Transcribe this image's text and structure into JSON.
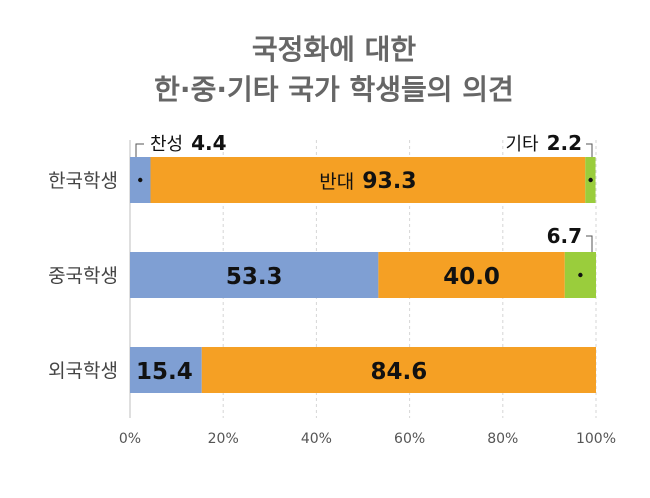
{
  "chart_data": {
    "type": "bar",
    "orientation": "horizontal",
    "stacked": true,
    "title_lines": [
      "국정화에 대한",
      "한·중·기타 국가 학생들의 의견"
    ],
    "categories": [
      "한국학생",
      "중국학생",
      "외국학생"
    ],
    "series": [
      {
        "name": "찬성",
        "color": "#7f9fd3",
        "values": [
          4.4,
          53.3,
          15.4
        ]
      },
      {
        "name": "반대",
        "color": "#f5a024",
        "values": [
          93.3,
          40.0,
          84.6
        ]
      },
      {
        "name": "기타",
        "color": "#9acd3c",
        "values": [
          2.2,
          6.7,
          0
        ]
      }
    ],
    "data_labels": [
      [
        "4.4",
        "93.3",
        "2.2"
      ],
      [
        "53.3",
        "40.0",
        "6.7"
      ],
      [
        "15.4",
        "84.6",
        ""
      ]
    ],
    "callouts": {
      "agree_prefix": "찬성",
      "oppose_prefix": "반대",
      "other_prefix": "기타"
    },
    "x_ticks": [
      "0%",
      "20%",
      "40%",
      "60%",
      "80%",
      "100%"
    ],
    "xlim": [
      0,
      100
    ],
    "grid": true
  }
}
